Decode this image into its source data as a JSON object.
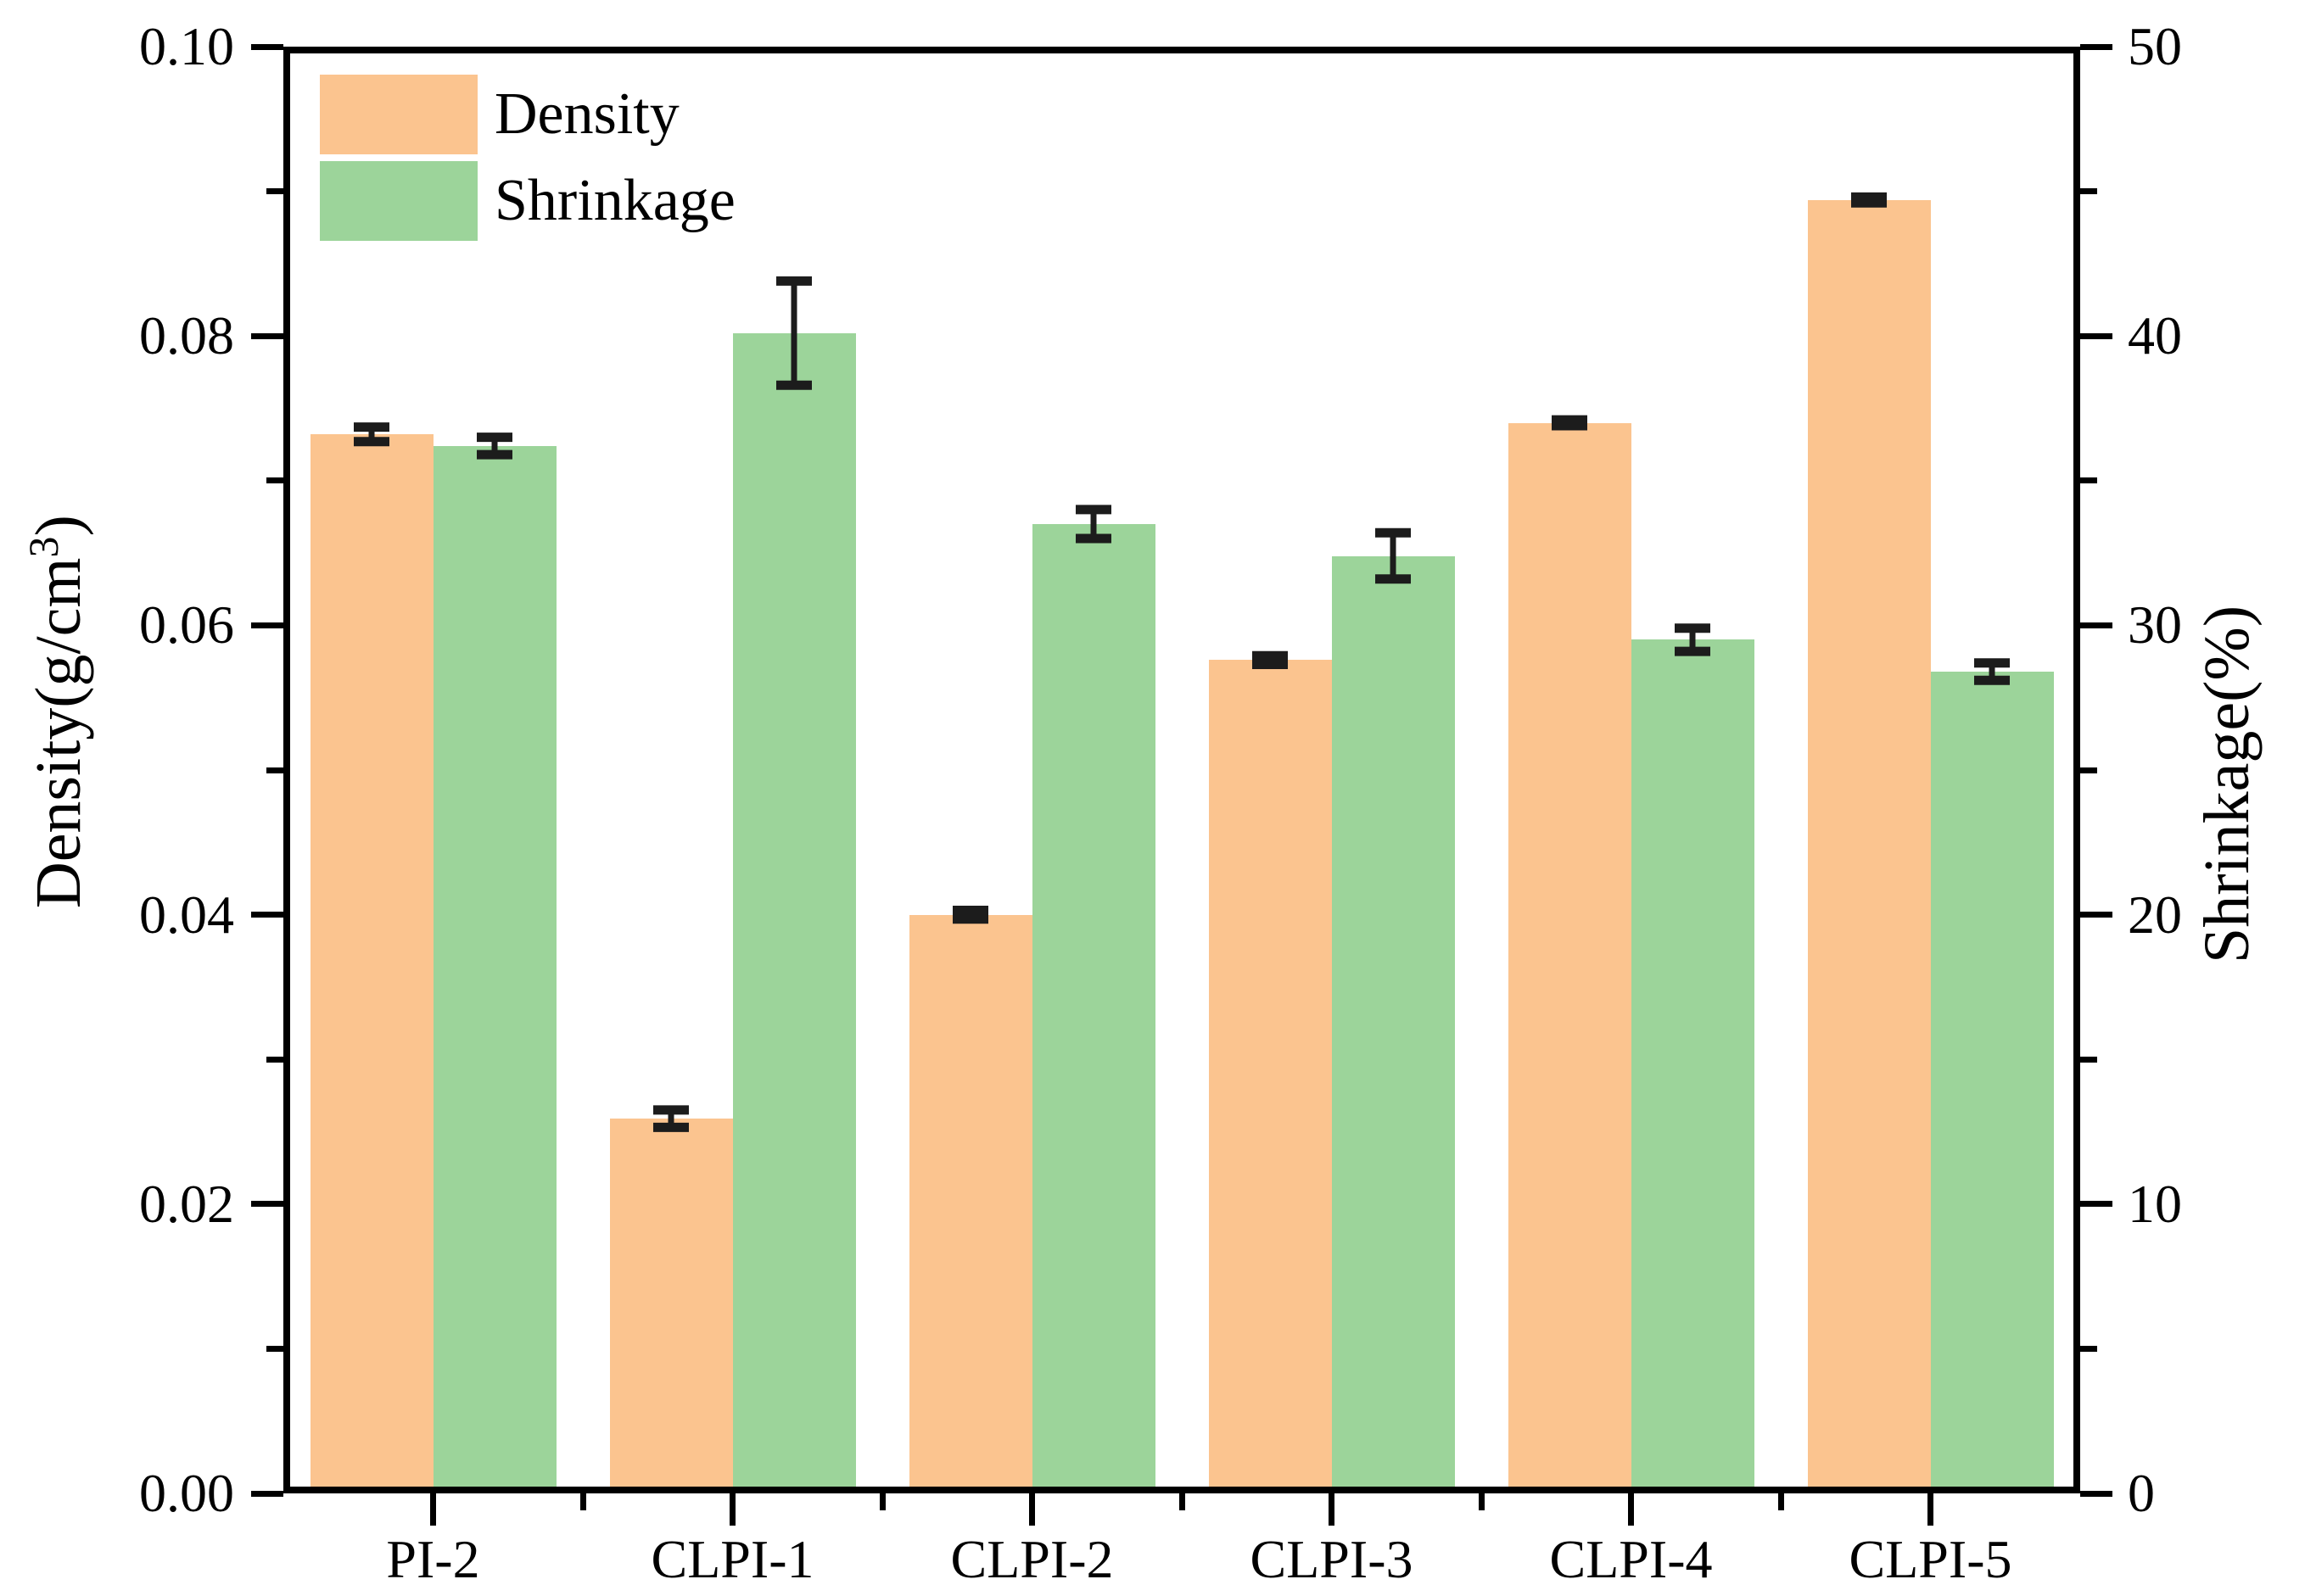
{
  "chart_data": {
    "type": "bar",
    "title": "",
    "categories": [
      "PI-2",
      "CLPI-1",
      "CLPI-2",
      "CLPI-3",
      "CLPI-4",
      "CLPI-5"
    ],
    "series": [
      {
        "name": "Density",
        "axis": "left",
        "color": "#FBC48F",
        "values": [
          0.0732,
          0.0259,
          0.04,
          0.0576,
          0.074,
          0.0894
        ],
        "errors": [
          0.0005,
          0.0006,
          0.0003,
          0.0003,
          0.0002,
          0.0002
        ]
      },
      {
        "name": "Shrinkage",
        "axis": "right",
        "color": "#9CD49A",
        "values": [
          36.2,
          40.1,
          33.5,
          32.4,
          29.5,
          28.4
        ],
        "errors": [
          0.3,
          1.8,
          0.5,
          0.8,
          0.4,
          0.3
        ]
      }
    ],
    "left_axis": {
      "label_prefix": "Density(g/cm",
      "label_sup": "3",
      "label_suffix": ")",
      "min": 0.0,
      "max": 0.1,
      "tick_labels": [
        "0.00",
        "0.02",
        "0.04",
        "0.06",
        "0.08",
        "0.10"
      ],
      "minor_tick_values": [
        0.01,
        0.03,
        0.05,
        0.07,
        0.09
      ]
    },
    "right_axis": {
      "label": "Shrinkage(%)",
      "min": 0,
      "max": 50,
      "tick_labels": [
        "0",
        "10",
        "20",
        "30",
        "40",
        "50"
      ],
      "minor_tick_values": [
        5,
        15,
        25,
        35,
        45
      ]
    },
    "legend": {
      "position": "top-left",
      "items": [
        "Density",
        "Shrinkage"
      ]
    },
    "grid": false,
    "error_bar_color": "#1c1c1c",
    "spine_color": "#000000"
  }
}
